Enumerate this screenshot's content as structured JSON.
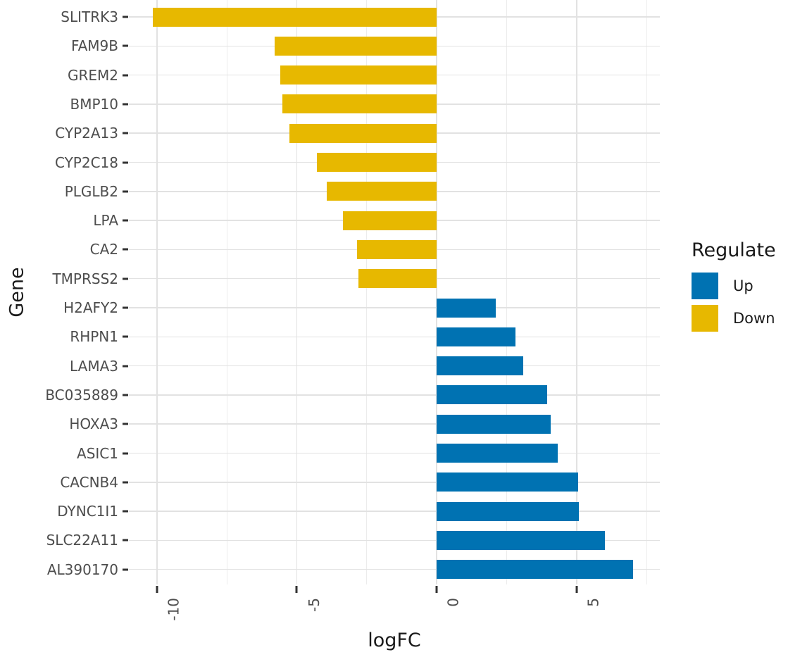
{
  "chart_data": {
    "type": "bar",
    "orientation": "horizontal",
    "title": "",
    "xlabel": "logFC",
    "ylabel": "Gene",
    "xlim": [
      -11,
      7.97
    ],
    "x_major_ticks": [
      -10,
      -5,
      0,
      5
    ],
    "x_minor_gridlines": [
      -7.5,
      -2.5,
      2.5,
      7.5
    ],
    "grid": "major and minor vertical gridlines, horizontal gridline per category, white background",
    "legend": {
      "title": "Regulate",
      "position": "right",
      "items": [
        {
          "label": "Up",
          "color": "#0072B2"
        },
        {
          "label": "Down",
          "color": "#E7B800"
        }
      ]
    },
    "colors": {
      "Up": "#0072B2",
      "Down": "#E7B800"
    },
    "styles": {
      "grid_major": "#E2E2E2",
      "grid_minor": "#ECECEC",
      "tick_mark": "#333333",
      "axis_text": "#4D4D4D",
      "axis_title": "#1A1A1A"
    },
    "rows": [
      {
        "gene": "SLITRK3",
        "logFC": -10.15,
        "regulate": "Down"
      },
      {
        "gene": "FAM9B",
        "logFC": -5.78,
        "regulate": "Down"
      },
      {
        "gene": "GREM2",
        "logFC": -5.6,
        "regulate": "Down"
      },
      {
        "gene": "BMP10",
        "logFC": -5.51,
        "regulate": "Down"
      },
      {
        "gene": "CYP2A13",
        "logFC": -5.27,
        "regulate": "Down"
      },
      {
        "gene": "CYP2C18",
        "logFC": -4.27,
        "regulate": "Down"
      },
      {
        "gene": "PLGLB2",
        "logFC": -3.92,
        "regulate": "Down"
      },
      {
        "gene": "LPA",
        "logFC": -3.34,
        "regulate": "Down"
      },
      {
        "gene": "CA2",
        "logFC": -2.86,
        "regulate": "Down"
      },
      {
        "gene": "TMPRSS2",
        "logFC": -2.81,
        "regulate": "Down"
      },
      {
        "gene": "H2AFY2",
        "logFC": 2.12,
        "regulate": "Up"
      },
      {
        "gene": "RHPN1",
        "logFC": 2.82,
        "regulate": "Up"
      },
      {
        "gene": "LAMA3",
        "logFC": 3.1,
        "regulate": "Up"
      },
      {
        "gene": "BC035889",
        "logFC": 3.94,
        "regulate": "Up"
      },
      {
        "gene": "HOXA3",
        "logFC": 4.06,
        "regulate": "Up"
      },
      {
        "gene": "ASIC1",
        "logFC": 4.31,
        "regulate": "Up"
      },
      {
        "gene": "CACNB4",
        "logFC": 5.06,
        "regulate": "Up"
      },
      {
        "gene": "DYNC1I1",
        "logFC": 5.08,
        "regulate": "Up"
      },
      {
        "gene": "SLC22A11",
        "logFC": 6.0,
        "regulate": "Up"
      },
      {
        "gene": "AL390170",
        "logFC": 7.02,
        "regulate": "Up"
      }
    ]
  }
}
